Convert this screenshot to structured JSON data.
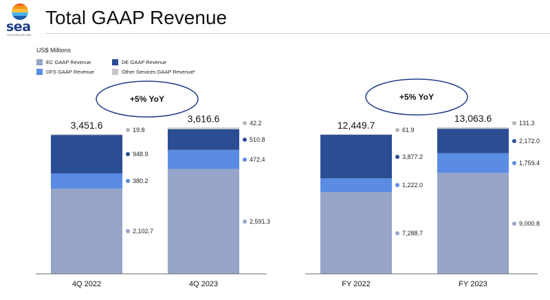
{
  "header": {
    "logo_text": "sea",
    "logo_tagline": "connecting the dots",
    "title": "Total GAAP Revenue"
  },
  "units": "US$ Millions",
  "legend": [
    {
      "label": "EC GAAP Revenue",
      "color": "#96a5c8"
    },
    {
      "label": "DE GAAP Revenue",
      "color": "#2b4d94"
    },
    {
      "label": "DFS GAAP Revenue",
      "color": "#5b8ce4"
    },
    {
      "label": "Other Services GAAP Revenue¹",
      "color": "#c8c8c8"
    }
  ],
  "chart_data": [
    {
      "type": "bar",
      "stacked": true,
      "categories": [
        "4Q 2022",
        "4Q 2023"
      ],
      "totals": [
        "3,451.6",
        "3,616.6"
      ],
      "annotation": "+5% YoY",
      "series": [
        {
          "name": "EC GAAP Revenue",
          "color": "#96a5c8",
          "values": [
            2102.7,
            2591.3
          ],
          "labels": [
            "2,102.7",
            "2,591.3"
          ]
        },
        {
          "name": "DFS GAAP Revenue",
          "color": "#5b8ce4",
          "values": [
            380.2,
            472.4
          ],
          "labels": [
            "380.2",
            "472.4"
          ]
        },
        {
          "name": "DE GAAP Revenue",
          "color": "#2b4d94",
          "values": [
            948.9,
            510.8
          ],
          "labels": [
            "948.9",
            "510.8"
          ]
        },
        {
          "name": "Other Services GAAP Revenue¹",
          "color": "#c8c8c8",
          "values": [
            19.8,
            42.2
          ],
          "labels": [
            "19.8",
            "42.2"
          ]
        }
      ]
    },
    {
      "type": "bar",
      "stacked": true,
      "categories": [
        "FY 2022",
        "FY 2023"
      ],
      "totals": [
        "12,449.7",
        "13,063.6"
      ],
      "annotation": "+5% YoY",
      "series": [
        {
          "name": "EC GAAP Revenue",
          "color": "#96a5c8",
          "values": [
            7288.7,
            9000.8
          ],
          "labels": [
            "7,288.7",
            "9,000.8"
          ]
        },
        {
          "name": "DFS GAAP Revenue",
          "color": "#5b8ce4",
          "values": [
            1222.0,
            1759.4
          ],
          "labels": [
            "1,222.0",
            "1,759.4"
          ]
        },
        {
          "name": "DE GAAP Revenue",
          "color": "#2b4d94",
          "values": [
            3877.2,
            2172.0
          ],
          "labels": [
            "3,877.2",
            "2,172.0"
          ]
        },
        {
          "name": "Other Services GAAP Revenue¹",
          "color": "#c8c8c8",
          "values": [
            61.9,
            131.3
          ],
          "labels": [
            "61.9",
            "131.3"
          ]
        }
      ]
    }
  ]
}
